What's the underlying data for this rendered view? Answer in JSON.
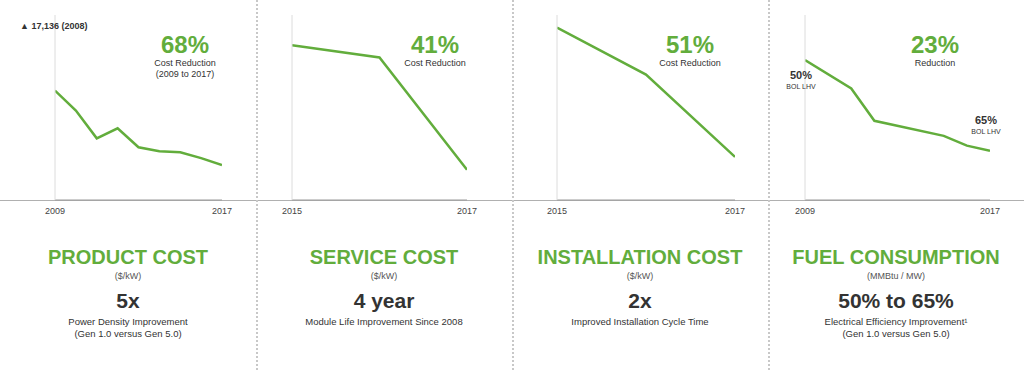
{
  "chart_data": [
    {
      "type": "line",
      "title": "PRODUCT COST",
      "subtitle": "($/kW)",
      "x": [
        2009,
        2010,
        2011,
        2012,
        2013,
        2014,
        2015,
        2016,
        2017
      ],
      "values": [
        10650,
        8710,
        6000,
        6970,
        5130,
        4740,
        4650,
        4070,
        3400
      ],
      "xlim": [
        2009,
        2017
      ],
      "xticks": [
        2009,
        2017
      ],
      "ylim": [
        0,
        18000
      ],
      "color": "#62ad3c",
      "tick_labels": "x",
      "grid": false,
      "annotations": {
        "callout": "▲ 17,136 (2008)",
        "headline": "68%",
        "headline_notes": [
          "Cost Reduction",
          "(2009 to 2017)"
        ]
      },
      "footer": {
        "highlight": "5x",
        "notes": [
          "Power Density Improvement",
          "(Gen 1.0 versus Gen 5.0)"
        ]
      }
    },
    {
      "type": "line",
      "title": "SERVICE COST",
      "subtitle": "($/kW)",
      "x": [
        2015,
        2016,
        2017
      ],
      "values": [
        1000,
        960,
        590
      ],
      "xlim": [
        2015,
        2017
      ],
      "xticks": [
        2015,
        2017
      ],
      "ylim": [
        490,
        1100
      ],
      "color": "#62ad3c",
      "tick_labels": "x",
      "grid": false,
      "annotations": {
        "headline": "41%",
        "headline_notes": [
          "Cost Reduction"
        ]
      },
      "footer": {
        "highlight": "4 year",
        "notes": [
          "Module Life Improvement Since 2008"
        ]
      }
    },
    {
      "type": "line",
      "title": "INSTALLATION COST",
      "subtitle": "($/kW)",
      "x": [
        2015,
        2016,
        2017
      ],
      "values": [
        1000,
        815,
        490
      ],
      "xlim": [
        2015,
        2017
      ],
      "xticks": [
        2015,
        2017
      ],
      "ylim": [
        320,
        1050
      ],
      "color": "#62ad3c",
      "tick_labels": "x",
      "grid": false,
      "annotations": {
        "headline": "51%",
        "headline_notes": [
          "Cost Reduction"
        ]
      },
      "footer": {
        "highlight": "2x",
        "notes": [
          "Improved Installation Cycle Time"
        ]
      }
    },
    {
      "type": "line",
      "title": "FUEL CONSUMPTION",
      "subtitle": "(MMBtu / MW)",
      "x": [
        2009,
        2011,
        2012,
        2015,
        2016,
        2017
      ],
      "values": [
        6.82,
        6.33,
        5.77,
        5.51,
        5.34,
        5.25
      ],
      "xlim": [
        2009,
        2017
      ],
      "xticks": [
        2009,
        2017
      ],
      "ylim": [
        4.4,
        7.6
      ],
      "color": "#62ad3c",
      "tick_labels": "x",
      "grid": false,
      "annotations": {
        "headline": "23%",
        "headline_notes": [
          "Reduction"
        ],
        "point_labels": [
          {
            "x": 2009,
            "text": [
              "50%",
              "BOL LHV"
            ]
          },
          {
            "x": 2017,
            "text": [
              "65%",
              "BOL LHV"
            ]
          }
        ]
      },
      "footer": {
        "highlight": "50% to 65%",
        "notes": [
          "Electrical Efficiency Improvement¹",
          "(Gen 1.0 versus Gen 5.0)"
        ]
      }
    }
  ]
}
